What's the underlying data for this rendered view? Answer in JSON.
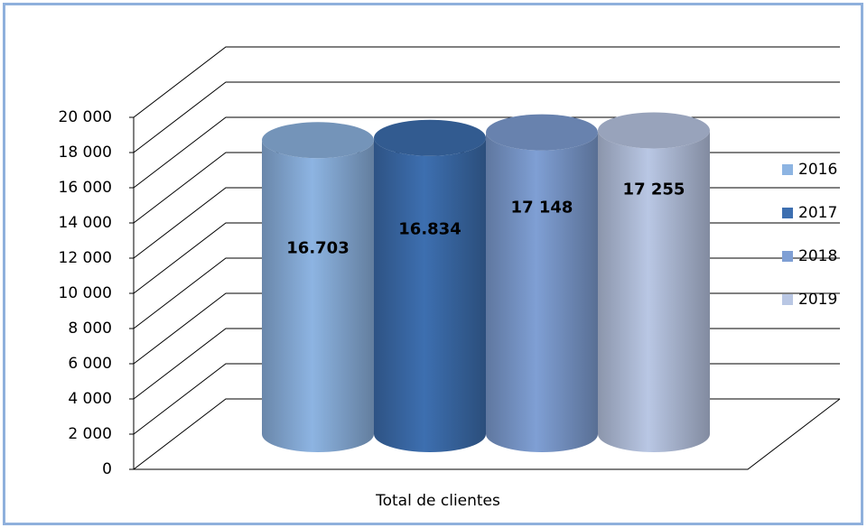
{
  "chart_data": {
    "type": "bar",
    "x_label": "Total de clientes",
    "categories": [
      "Total de clientes"
    ],
    "series": [
      {
        "name": "2016",
        "color": "#8db4e2",
        "values": [
          16703
        ],
        "value_labels": [
          "16.703"
        ]
      },
      {
        "name": "2017",
        "color": "#3d6fb0",
        "values": [
          16834
        ],
        "value_labels": [
          "16.834"
        ]
      },
      {
        "name": "2018",
        "color": "#7f9fd4",
        "values": [
          17148
        ],
        "value_labels": [
          "17 148"
        ]
      },
      {
        "name": "2019",
        "color": "#b9c7e4",
        "values": [
          17255
        ],
        "value_labels": [
          "17 255"
        ]
      }
    ],
    "ylim": [
      0,
      20000
    ],
    "yticks": [
      0,
      {
        "value": 2000,
        "label": "2 000"
      },
      {
        "value": 4000,
        "label": "4 000"
      },
      {
        "value": 6000,
        "label": "6 000"
      },
      {
        "value": 8000,
        "label": "8 000"
      },
      {
        "value": 10000,
        "label": "10 000"
      },
      {
        "value": 12000,
        "label": "12 000"
      },
      {
        "value": 14000,
        "label": "14 000"
      },
      {
        "value": 16000,
        "label": "16 000"
      },
      {
        "value": 18000,
        "label": "18 000"
      },
      {
        "value": 20000,
        "label": "20 000"
      }
    ],
    "grid": true,
    "legend": "right"
  }
}
